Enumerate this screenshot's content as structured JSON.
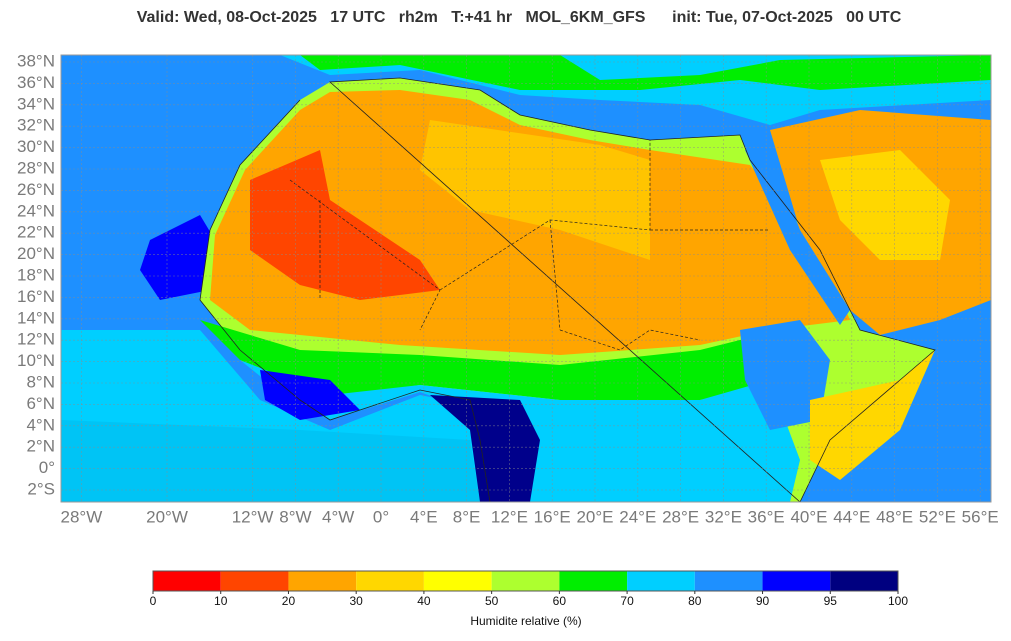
{
  "title": "Valid: Wed, 08-Oct-2025   17 UTC   rh2m   T:+41 hr   MOL_6KM_GFS      init: Tue, 07-Oct-2025   00 UTC",
  "map": {
    "lat_labels": [
      {
        "value": 38,
        "label": "38°N"
      },
      {
        "value": 36,
        "label": "36°N"
      },
      {
        "value": 34,
        "label": "34°N"
      },
      {
        "value": 32,
        "label": "32°N"
      },
      {
        "value": 30,
        "label": "30°N"
      },
      {
        "value": 28,
        "label": "28°N"
      },
      {
        "value": 26,
        "label": "26°N"
      },
      {
        "value": 24,
        "label": "24°N"
      },
      {
        "value": 22,
        "label": "22°N"
      },
      {
        "value": 20,
        "label": "20°N"
      },
      {
        "value": 18,
        "label": "18°N"
      },
      {
        "value": 16,
        "label": "16°N"
      },
      {
        "value": 14,
        "label": "14°N"
      },
      {
        "value": 12,
        "label": "12°N"
      },
      {
        "value": 10,
        "label": "10°N"
      },
      {
        "value": 8,
        "label": "8°N"
      },
      {
        "value": 6,
        "label": "6°N"
      },
      {
        "value": 4,
        "label": "4°N"
      },
      {
        "value": 2,
        "label": "2°N"
      },
      {
        "value": 0,
        "label": "0°"
      },
      {
        "value": -2,
        "label": "2°S"
      }
    ],
    "lon_labels": [
      {
        "value": -28,
        "label": "28°W"
      },
      {
        "value": -20,
        "label": "20°W"
      },
      {
        "value": -12,
        "label": "12°W"
      },
      {
        "value": -8,
        "label": "8°W"
      },
      {
        "value": -4,
        "label": "4°W"
      },
      {
        "value": 0,
        "label": "0°"
      },
      {
        "value": 4,
        "label": "4°E"
      },
      {
        "value": 8,
        "label": "8°E"
      },
      {
        "value": 12,
        "label": "12°E"
      },
      {
        "value": 16,
        "label": "16°E"
      },
      {
        "value": 20,
        "label": "20°E"
      },
      {
        "value": 24,
        "label": "24°E"
      },
      {
        "value": 28,
        "label": "28°E"
      },
      {
        "value": 32,
        "label": "32°E"
      },
      {
        "value": 36,
        "label": "36°E"
      },
      {
        "value": 40,
        "label": "40°E"
      },
      {
        "value": 44,
        "label": "44°E"
      },
      {
        "value": 48,
        "label": "48°E"
      },
      {
        "value": 52,
        "label": "52°E"
      },
      {
        "value": 56,
        "label": "56°E"
      }
    ]
  },
  "colorbar": {
    "ticks": [
      0,
      10,
      20,
      30,
      40,
      50,
      60,
      70,
      80,
      90,
      95,
      100
    ],
    "colors": [
      "#ff0000",
      "#ff4500",
      "#ffa500",
      "#ffd700",
      "#ffff00",
      "#adff2f",
      "#00ee00",
      "#00cfff",
      "#1e90ff",
      "#0000ff",
      "#000080"
    ],
    "label": "Humidite relative (%)"
  }
}
